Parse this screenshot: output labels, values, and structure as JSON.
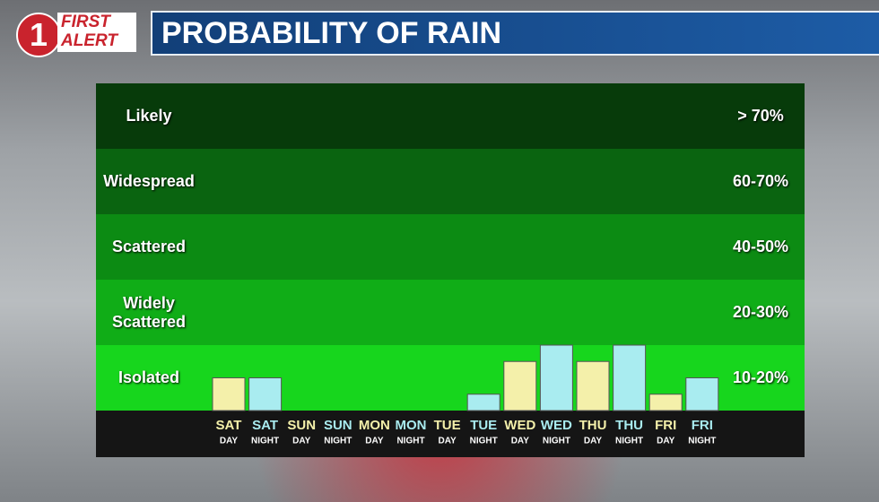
{
  "header": {
    "logo_number": "1",
    "logo_top": "FIRST",
    "logo_bottom": "ALERT",
    "title": "PROBABILITY OF RAIN"
  },
  "chart_data": {
    "type": "bar",
    "bands": [
      {
        "label": "Likely",
        "range": "> 70%",
        "color": "#073b0a"
      },
      {
        "label": "Widespread",
        "range": "60-70%",
        "color": "#0a6410"
      },
      {
        "label": "Scattered",
        "range": "40-50%",
        "color": "#0c8b13"
      },
      {
        "label": "Widely Scattered",
        "range": "20-30%",
        "color": "#10ad17"
      },
      {
        "label": "Isolated",
        "range": "10-20%",
        "color": "#17d61d"
      }
    ],
    "categories": [
      "SAT",
      "SAT",
      "SUN",
      "SUN",
      "MON",
      "MON",
      "TUE",
      "TUE",
      "WED",
      "WED",
      "THU",
      "THU",
      "FRI",
      "FRI"
    ],
    "sublabels": [
      "DAY",
      "NIGHT",
      "DAY",
      "NIGHT",
      "DAY",
      "NIGHT",
      "DAY",
      "NIGHT",
      "DAY",
      "NIGHT",
      "DAY",
      "NIGHT",
      "DAY",
      "NIGHT"
    ],
    "values": [
      10,
      10,
      0,
      0,
      0,
      0,
      0,
      5,
      15,
      20,
      15,
      20,
      5,
      10
    ],
    "colors": [
      "#f4f0aa",
      "#a9ecf0",
      "#f4f0aa",
      "#a9ecf0",
      "#f4f0aa",
      "#a9ecf0",
      "#f4f0aa",
      "#a9ecf0",
      "#f4f0aa",
      "#a9ecf0",
      "#f4f0aa",
      "#a9ecf0",
      "#f4f0aa",
      "#a9ecf0"
    ],
    "ylim": [
      0,
      20
    ]
  }
}
